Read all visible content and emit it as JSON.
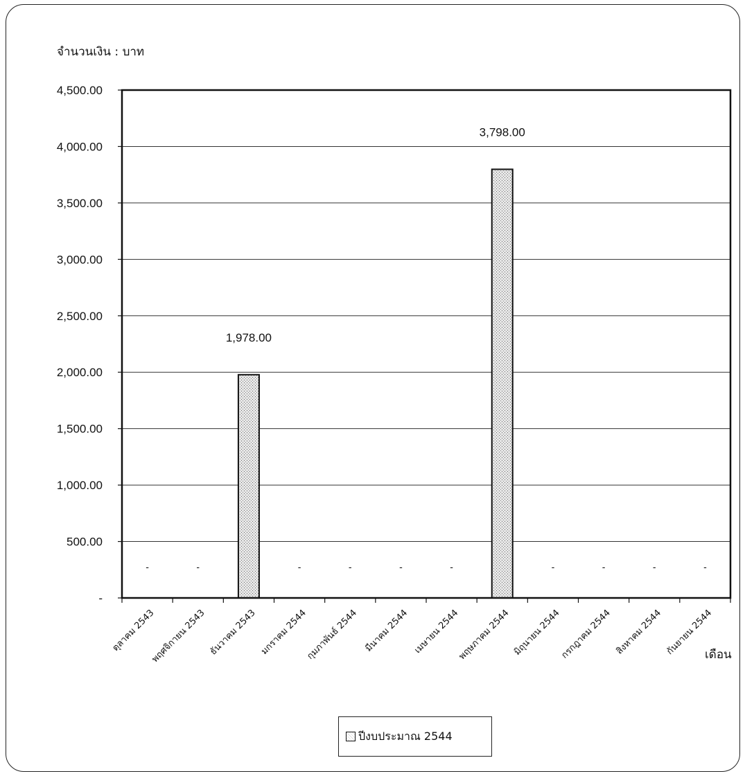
{
  "chart_data": {
    "type": "bar",
    "ylabel": "จำนวนเงิน : บาท",
    "xlabel": "เดือน",
    "categories": [
      "ตุลาคม 2543",
      "พฤศจิกายน 2543",
      "ธันวาคม 2543",
      "มกราคม 2544",
      "กุมภาพันธ์ 2544",
      "มีนาคม 2544",
      "เมษายน 2544",
      "พฤษภาคม 2544",
      "มิถุนายน 2544",
      "กรกฎาคม 2544",
      "สิงหาคม 2544",
      "กันยายน 2544"
    ],
    "series": [
      {
        "name": "ปีงบประมาณ 2544",
        "values": [
          0,
          0,
          1978,
          0,
          0,
          0,
          0,
          3798,
          0,
          0,
          0,
          0
        ]
      }
    ],
    "data_labels": [
      "-",
      "-",
      "1,978.00",
      "-",
      "-",
      "-",
      "-",
      "3,798.00",
      "-",
      "-",
      "-",
      "-"
    ],
    "ylim": [
      0,
      4500
    ],
    "yticks": [
      0,
      500,
      1000,
      1500,
      2000,
      2500,
      3000,
      3500,
      4000,
      4500
    ],
    "ytick_labels": [
      "-",
      "500.00",
      "1,000.00",
      "1,500.00",
      "2,000.00",
      "2,500.00",
      "3,000.00",
      "3,500.00",
      "4,000.00",
      "4,500.00"
    ],
    "grid": true,
    "legend_position": "bottom-center",
    "bar_fill": "#d9d9d9",
    "bar_stroke": "#111111"
  }
}
